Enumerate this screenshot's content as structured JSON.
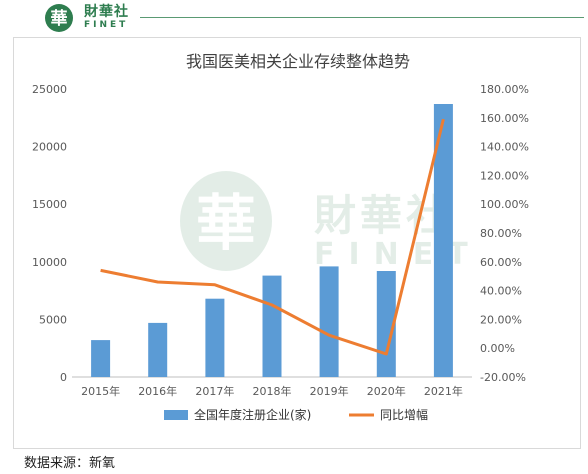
{
  "brand": {
    "logo_glyph": "華",
    "name_cn": "財華社",
    "name_en": "FINET",
    "color": "#2e7d4f"
  },
  "watermark": {
    "glyph": "華",
    "text_cn": "財華社",
    "text_en": "FINET"
  },
  "source_text": "数据来源：新氧",
  "chart_data": {
    "type": "bar",
    "title": "我国医美相关企业存续整体趋势",
    "categories": [
      "2015年",
      "2016年",
      "2017年",
      "2018年",
      "2019年",
      "2020年",
      "2021年"
    ],
    "series": [
      {
        "name": "全国年度注册企业(家)",
        "type": "bar",
        "axis": "left",
        "color": "#5b9bd5",
        "values": [
          3200,
          4700,
          6800,
          8800,
          9600,
          9200,
          23700
        ]
      },
      {
        "name": "同比增幅",
        "type": "line",
        "axis": "right",
        "color": "#ed7d31",
        "values": [
          54,
          46,
          44,
          30,
          9,
          -4,
          159
        ]
      }
    ],
    "y_left": {
      "min": 0,
      "max": 25000,
      "ticks": [
        "0",
        "5000",
        "10000",
        "15000",
        "20000",
        "25000"
      ]
    },
    "y_right": {
      "min": -20,
      "max": 180,
      "unit": "%",
      "ticks": [
        "-20.00%",
        "0.00%",
        "20.00%",
        "40.00%",
        "60.00%",
        "80.00%",
        "100.00%",
        "120.00%",
        "140.00%",
        "160.00%",
        "180.00%"
      ]
    },
    "grid": false,
    "legend_position": "bottom"
  }
}
